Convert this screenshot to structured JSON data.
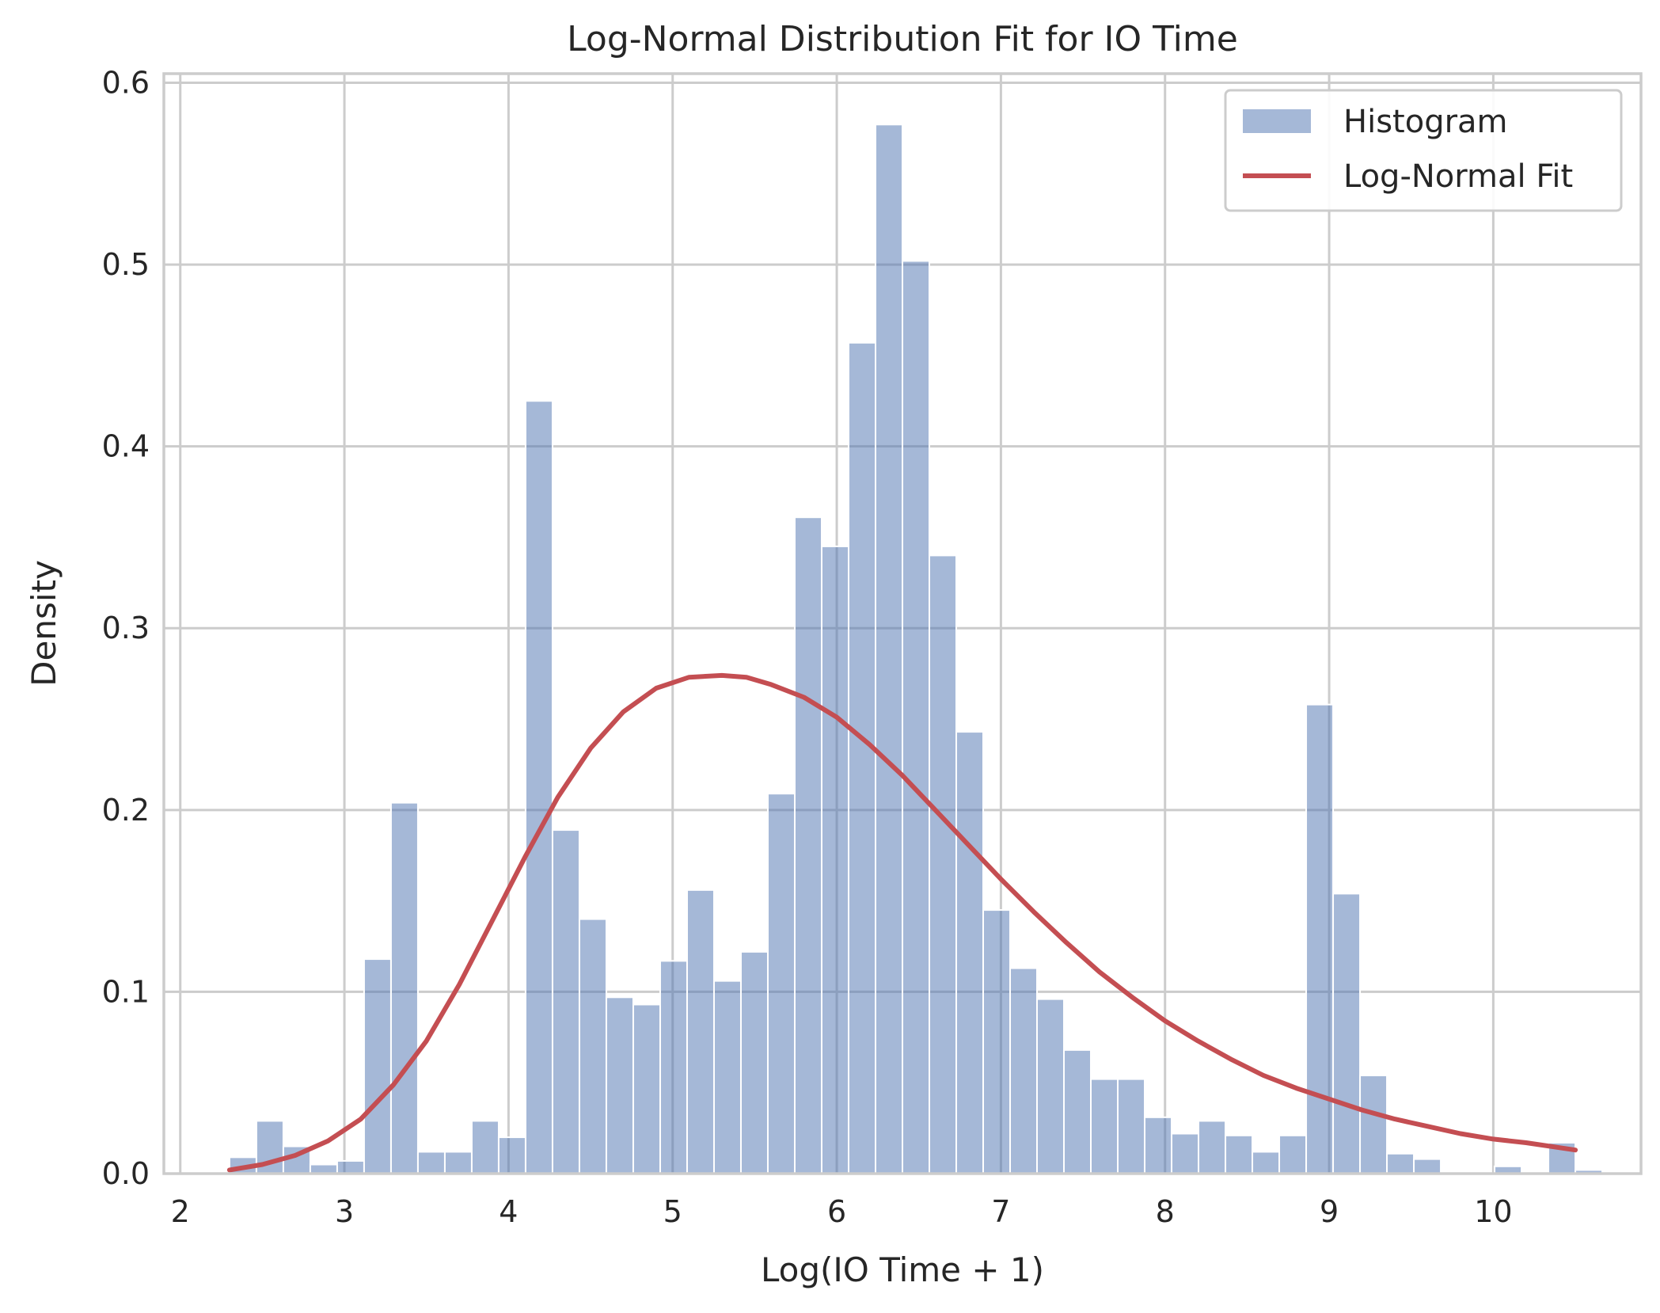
{
  "chart_data": {
    "type": "histogram",
    "title": "Log-Normal Distribution Fit for IO Time",
    "xlabel": "Log(IO Time + 1)",
    "ylabel": "Density",
    "xlim": [
      1.9,
      10.9
    ],
    "ylim": [
      0.0,
      0.605
    ],
    "xticks": [
      "2",
      "3",
      "4",
      "5",
      "6",
      "7",
      "8",
      "9",
      "10"
    ],
    "yticks": [
      "0.0",
      "0.1",
      "0.2",
      "0.3",
      "0.4",
      "0.5",
      "0.6"
    ],
    "grid": true,
    "legend_position": "top-right",
    "legend": [
      {
        "label": "Histogram",
        "kind": "patch",
        "color": "#4c72b0"
      },
      {
        "label": "Log-Normal Fit",
        "kind": "line",
        "color": "#c44e52"
      }
    ],
    "histogram": {
      "bin_start": 2.3,
      "bin_width": 0.164,
      "color": "#4c72b0",
      "densities": [
        0.009,
        0.029,
        0.015,
        0.005,
        0.007,
        0.118,
        0.204,
        0.012,
        0.012,
        0.029,
        0.02,
        0.425,
        0.189,
        0.14,
        0.097,
        0.093,
        0.117,
        0.156,
        0.106,
        0.122,
        0.209,
        0.361,
        0.345,
        0.457,
        0.577,
        0.502,
        0.34,
        0.243,
        0.145,
        0.113,
        0.096,
        0.068,
        0.052,
        0.052,
        0.031,
        0.022,
        0.029,
        0.021,
        0.012,
        0.021,
        0.258,
        0.154,
        0.054,
        0.011,
        0.008,
        0.0,
        0.0,
        0.004,
        0.0,
        0.017,
        0.002
      ]
    },
    "fit": {
      "name": "Log-Normal Fit",
      "color": "#c44e52",
      "x": [
        2.3,
        2.5,
        2.7,
        2.9,
        3.1,
        3.3,
        3.5,
        3.7,
        3.9,
        4.1,
        4.3,
        4.5,
        4.7,
        4.9,
        5.1,
        5.3,
        5.45,
        5.6,
        5.8,
        6.0,
        6.2,
        6.4,
        6.6,
        6.8,
        7.0,
        7.2,
        7.4,
        7.6,
        7.8,
        8.0,
        8.2,
        8.4,
        8.6,
        8.8,
        9.0,
        9.2,
        9.4,
        9.6,
        9.8,
        10.0,
        10.2,
        10.5
      ],
      "y": [
        0.002,
        0.005,
        0.01,
        0.018,
        0.03,
        0.049,
        0.073,
        0.104,
        0.139,
        0.174,
        0.207,
        0.234,
        0.254,
        0.267,
        0.273,
        0.274,
        0.273,
        0.269,
        0.262,
        0.251,
        0.236,
        0.219,
        0.2,
        0.181,
        0.162,
        0.144,
        0.127,
        0.111,
        0.097,
        0.084,
        0.073,
        0.063,
        0.054,
        0.047,
        0.041,
        0.035,
        0.03,
        0.026,
        0.022,
        0.019,
        0.017,
        0.013
      ]
    }
  }
}
